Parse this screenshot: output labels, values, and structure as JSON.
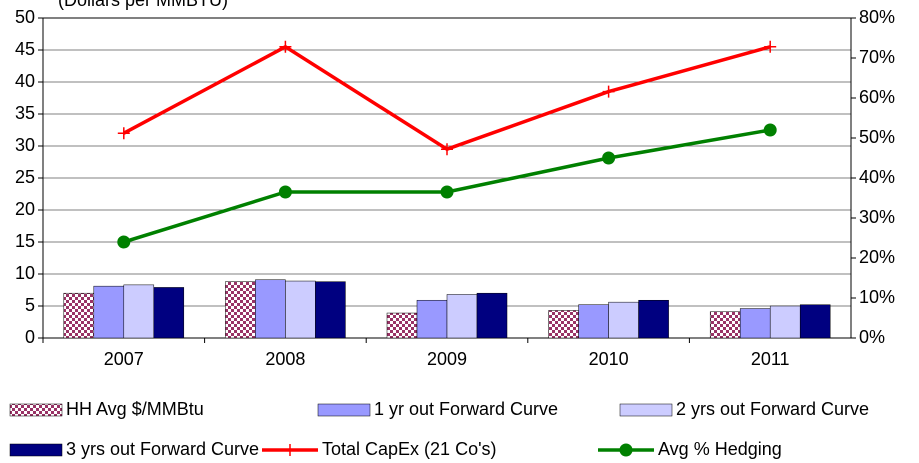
{
  "chart_data": {
    "type": "bar_line",
    "y_label": "(Dollars per MMBTU)",
    "categories": [
      "2007",
      "2008",
      "2009",
      "2010",
      "2011"
    ],
    "series": [
      {
        "name": "HH Avg $/MMBtu",
        "type": "bar",
        "color": "#993366",
        "pattern": "checker",
        "values": [
          7.0,
          8.8,
          3.9,
          4.3,
          4.1
        ]
      },
      {
        "name": "1 yr out Forward Curve",
        "type": "bar",
        "color": "#9999ff",
        "values": [
          8.1,
          9.1,
          5.9,
          5.2,
          4.6
        ]
      },
      {
        "name": "2 yrs out Forward Curve",
        "type": "bar",
        "color": "#ccccff",
        "values": [
          8.3,
          8.9,
          6.8,
          5.6,
          5.0
        ]
      },
      {
        "name": "3 yrs out Forward Curve",
        "type": "bar",
        "color": "#000080",
        "values": [
          7.9,
          8.8,
          7.0,
          5.9,
          5.2
        ]
      },
      {
        "name": "Total CapEx (21 Co's)",
        "type": "line",
        "marker": "plus",
        "color": "#ff0000",
        "values": [
          32,
          45.5,
          29.5,
          38.5,
          45.5
        ]
      },
      {
        "name": "Avg % Hedging",
        "type": "line",
        "marker": "circle",
        "color": "#008000",
        "axis": "y2",
        "values": [
          24,
          36.5,
          36.5,
          45,
          52
        ]
      }
    ],
    "ylim": [
      0,
      50
    ],
    "yticks": [
      0,
      5,
      10,
      15,
      20,
      25,
      30,
      35,
      40,
      45,
      50
    ],
    "y2lim": [
      0,
      80
    ],
    "y2ticks": [
      {
        "value": 0,
        "label": "0%"
      },
      {
        "value": 10,
        "label": "10%"
      },
      {
        "value": 20,
        "label": "20%"
      },
      {
        "value": 30,
        "label": "30%"
      },
      {
        "value": 40,
        "label": "40%"
      },
      {
        "value": 50,
        "label": "50%"
      },
      {
        "value": 60,
        "label": "60%"
      },
      {
        "value": 70,
        "label": "70%"
      },
      {
        "value": 80,
        "label": "80%"
      }
    ],
    "grid": true
  }
}
